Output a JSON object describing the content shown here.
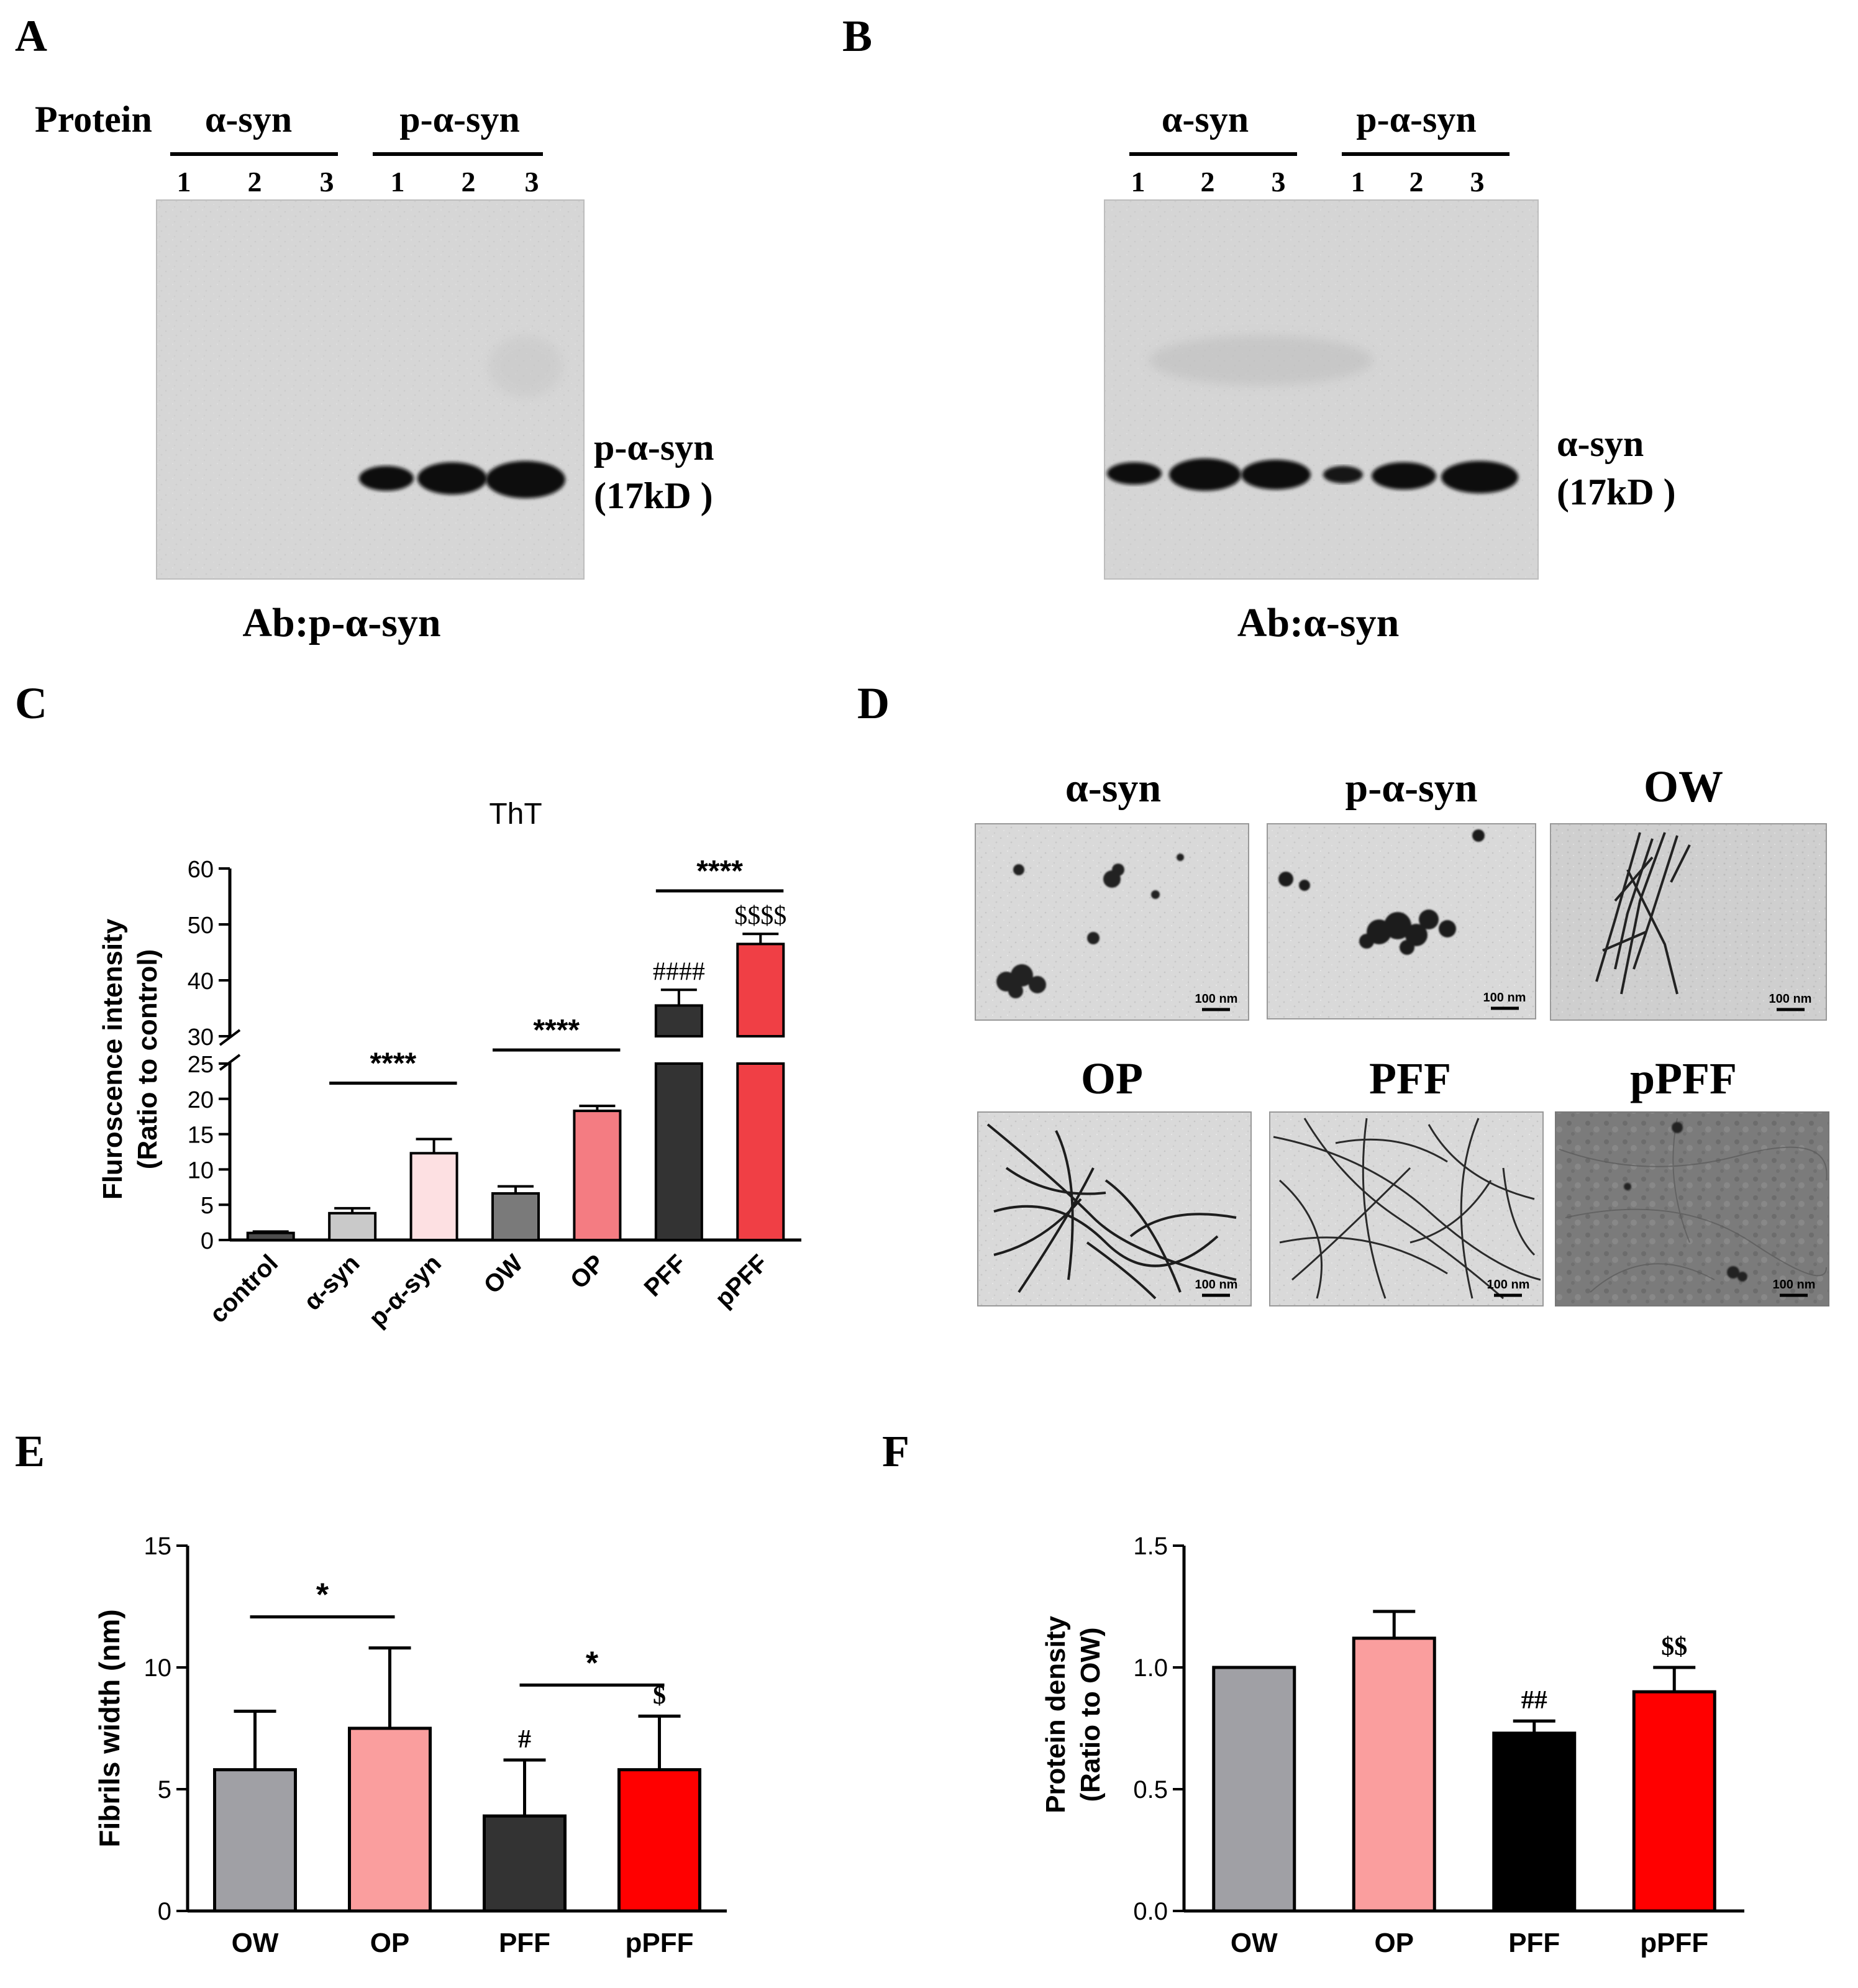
{
  "panels": {
    "A": {
      "letter": "A",
      "protein_label": "Protein",
      "groups": [
        "α-syn",
        "p-α-syn"
      ],
      "lanes": [
        "1",
        "2",
        "3",
        "1",
        "2",
        "3"
      ],
      "band_label": "p-α-syn",
      "band_size": "(17kD )",
      "antibody": "Ab:p-α-syn"
    },
    "B": {
      "letter": "B",
      "groups": [
        "α-syn",
        "p-α-syn"
      ],
      "lanes": [
        "1",
        "2",
        "3",
        "1",
        "2",
        "3"
      ],
      "band_label": "α-syn",
      "band_size": "(17kD )",
      "antibody": "Ab:α-syn"
    },
    "C": {
      "letter": "C"
    },
    "D": {
      "letter": "D",
      "titles": [
        "α-syn",
        "p-α-syn",
        "OW",
        "OP",
        "PFF",
        "pPFF"
      ],
      "scale_label": "100 nm"
    },
    "E": {
      "letter": "E"
    },
    "F": {
      "letter": "F"
    }
  },
  "chart_data": [
    {
      "panel": "C",
      "type": "bar",
      "title": "ThT",
      "ylabel": [
        "Fluroscence intensity",
        "(Ratio to control)"
      ],
      "categories": [
        "control",
        "α-syn",
        "p-α-syn",
        "OW",
        "OP",
        "PFF",
        "pPFF"
      ],
      "values": [
        1.0,
        3.8,
        12.3,
        6.6,
        18.3,
        35.5,
        46.5
      ],
      "errors": [
        0.2,
        0.7,
        2.0,
        1.0,
        0.7,
        2.8,
        1.8
      ],
      "colors": [
        "#4d4d4d",
        "#c9c9c9",
        "#fde0e2",
        "#7a7a7a",
        "#f47c82",
        "#333333",
        "#f03f45"
      ],
      "axis_break": [
        25,
        30
      ],
      "lower_ticks": [
        0,
        5,
        10,
        15,
        20,
        25
      ],
      "upper_ticks": [
        30,
        40,
        50,
        60
      ],
      "ylim": [
        0,
        60
      ],
      "significance": [
        {
          "from": 1,
          "to": 2,
          "label": "****"
        },
        {
          "from": 3,
          "to": 4,
          "label": "****"
        },
        {
          "from": 5,
          "to": 6,
          "label": "****"
        }
      ],
      "bar_marks": [
        {
          "index": 5,
          "label": "####"
        },
        {
          "index": 6,
          "label": "$$$$"
        }
      ]
    },
    {
      "panel": "E",
      "type": "bar",
      "ylabel": [
        "Fibrils width (nm)"
      ],
      "categories": [
        "OW",
        "OP",
        "PFF",
        "pPFF"
      ],
      "values": [
        5.8,
        7.5,
        3.9,
        5.8
      ],
      "errors": [
        2.4,
        3.3,
        2.3,
        2.2
      ],
      "colors": [
        "#a0a0a5",
        "#fa9e9e",
        "#333333",
        "#ff0000"
      ],
      "ylim": [
        0,
        15
      ],
      "ticks": [
        0,
        5,
        10,
        15
      ],
      "significance": [
        {
          "from": 0,
          "to": 1,
          "label": "*"
        },
        {
          "from": 2,
          "to": 3,
          "label": "*"
        }
      ],
      "bar_marks": [
        {
          "index": 2,
          "label": "#"
        },
        {
          "index": 3,
          "label": "$"
        }
      ]
    },
    {
      "panel": "F",
      "type": "bar",
      "ylabel": [
        "Protein density",
        "(Ratio to OW)"
      ],
      "categories": [
        "OW",
        "OP",
        "PFF",
        "pPFF"
      ],
      "values": [
        1.0,
        1.12,
        0.73,
        0.9
      ],
      "errors": [
        0.0,
        0.11,
        0.05,
        0.1
      ],
      "colors": [
        "#a0a0a5",
        "#fa9e9e",
        "#000000",
        "#ff0000"
      ],
      "ylim": [
        0,
        1.5
      ],
      "ticks": [
        "0.0",
        "0.5",
        "1.0",
        "1.5"
      ],
      "significance": [],
      "bar_marks": [
        {
          "index": 2,
          "label": "##"
        },
        {
          "index": 3,
          "label": "$$"
        }
      ]
    }
  ]
}
